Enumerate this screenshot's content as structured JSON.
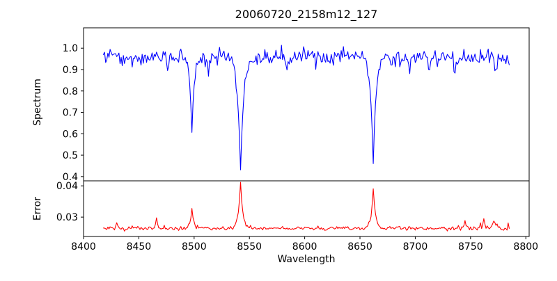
{
  "figure": {
    "background": "#ffffff",
    "frame_color": "#000000",
    "text_color": "#000000"
  },
  "chart_data": {
    "type": "line",
    "title": "20060720_2158m12_127",
    "xlabel": "Wavelength",
    "xlim": [
      8400,
      8803
    ],
    "x_ticks": [
      8400,
      8450,
      8500,
      8550,
      8600,
      8650,
      8700,
      8750,
      8800
    ],
    "x_data_range": [
      8418,
      8785
    ],
    "sample_step": 1,
    "grid": false,
    "legend": "none",
    "panels": [
      {
        "name": "spectrum",
        "ylabel": "Spectrum",
        "ylim": [
          0.38,
          1.095
        ],
        "y_ticks": [
          0.4,
          0.5,
          0.6,
          0.7,
          0.8,
          0.9,
          1.0
        ],
        "y_tick_decimals": 1,
        "line_color": "#0000ff",
        "continuum": 0.968,
        "continuum_slope_per_angstrom": -2.5e-05,
        "wobble_amplitude": 0.004,
        "wobble_period": 9.5,
        "noise_sigma": 0.017,
        "spike_probability": 0.1,
        "spike_scale": 0.045,
        "noise_seed": 20060720,
        "absorption_lines": [
          {
            "center": 8498,
            "min_value": 0.61,
            "width": 1.9,
            "shape_power": 1.15
          },
          {
            "center": 8542,
            "min_value": 0.43,
            "width": 2.9,
            "shape_power": 1.05
          },
          {
            "center": 8662,
            "min_value": 0.46,
            "width": 2.5,
            "shape_power": 1.05
          }
        ],
        "minor_dips": [
          [
            8437,
            0.035,
            1.2
          ],
          [
            8452,
            0.04,
            1.0
          ],
          [
            8476,
            0.045,
            1.2
          ],
          [
            8513,
            0.04,
            1.0
          ],
          [
            8583,
            0.045,
            1.2
          ],
          [
            8619,
            0.04,
            1.0
          ],
          [
            8695,
            0.06,
            1.4
          ],
          [
            8713,
            0.05,
            1.2
          ],
          [
            8736,
            0.055,
            1.6
          ],
          [
            8757,
            0.04,
            1.0
          ],
          [
            8773,
            0.06,
            1.2
          ]
        ]
      },
      {
        "name": "error",
        "ylabel": "Error",
        "ylim": [
          0.0238,
          0.0416
        ],
        "y_ticks": [
          0.03,
          0.04
        ],
        "y_tick_decimals": 2,
        "line_color": "#ff0000",
        "baseline": 0.0264,
        "noise_sigma": 0.00032,
        "right_noise_boost_from": 8738,
        "right_noise_boost_factor": 1.7,
        "noise_seed": 2158127,
        "peaks": [
          {
            "center": 8430,
            "height": 0.0014,
            "width": 1.3
          },
          {
            "center": 8466,
            "height": 0.0032,
            "width": 1.2
          },
          {
            "center": 8498,
            "height": 0.0066,
            "width": 1.6
          },
          {
            "center": 8542,
            "height": 0.0147,
            "width": 2.0
          },
          {
            "center": 8662,
            "height": 0.0128,
            "width": 1.8
          },
          {
            "center": 8745,
            "height": 0.0012,
            "width": 1.5
          },
          {
            "center": 8762,
            "height": 0.0022,
            "width": 1.6
          },
          {
            "center": 8771,
            "height": 0.0028,
            "width": 1.8
          }
        ]
      }
    ]
  }
}
